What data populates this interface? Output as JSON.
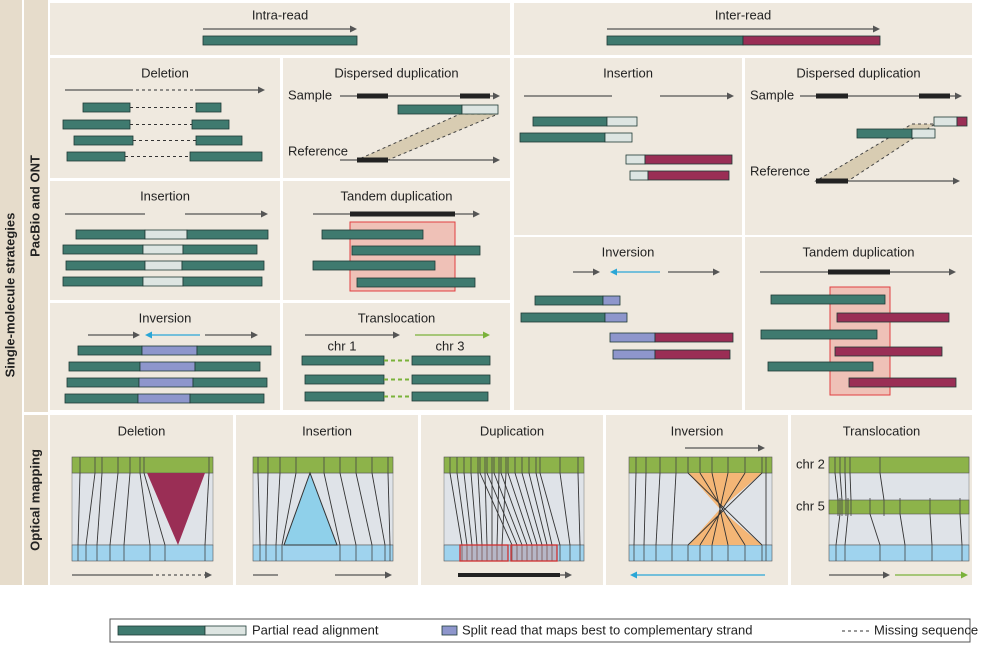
{
  "side_labels": {
    "outer": "Single-molecule strategies",
    "pacbio": "PacBio and ONT",
    "optical": "Optical mapping"
  },
  "read_types": {
    "intra": "Intra-read",
    "inter": "Inter-read"
  },
  "intra_panels": [
    {
      "title": "Deletion"
    },
    {
      "title": "Dispersed duplication",
      "labels": [
        "Sample",
        "Reference"
      ]
    },
    {
      "title": "Insertion"
    },
    {
      "title": "Tandem duplication"
    },
    {
      "title": "Inversion"
    },
    {
      "title": "Translocation",
      "labels": [
        "chr 1",
        "chr 3"
      ]
    }
  ],
  "inter_panels": [
    {
      "title": "Insertion"
    },
    {
      "title": "Dispersed duplication",
      "labels": [
        "Sample",
        "Reference"
      ]
    },
    {
      "title": "Inversion"
    },
    {
      "title": "Tandem duplication"
    }
  ],
  "optical_panels": [
    {
      "title": "Deletion"
    },
    {
      "title": "Insertion"
    },
    {
      "title": "Duplication"
    },
    {
      "title": "Inversion"
    },
    {
      "title": "Translocation",
      "labels": [
        "chr 2",
        "chr 5"
      ]
    }
  ],
  "legend": [
    "Partial read alignment",
    "Split read that maps best to complementary strand",
    "Missing sequence"
  ]
}
